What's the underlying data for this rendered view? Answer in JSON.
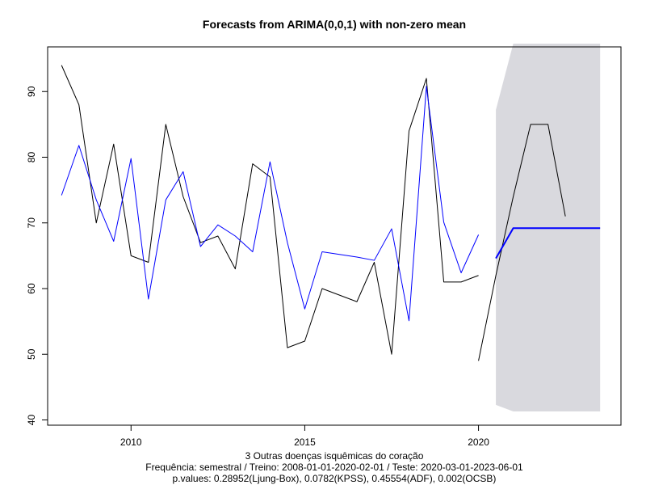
{
  "chart_data": {
    "type": "line",
    "title": "Forecasts from ARIMA(0,0,1) with non-zero mean",
    "caption_lines": [
      "3 Outras doenças isquêmicas do coração",
      "Frequência: semestral / Treino: 2008-01-01-2020-02-01 / Teste: 2020-03-01-2023-06-01",
      "p.values: 0.28952(Ljung-Box), 0.0782(KPSS), 0.45554(ADF), 0.002(OCSB)"
    ],
    "xlim": [
      2007.6,
      2024.1
    ],
    "ylim": [
      39.2,
      96.8
    ],
    "x_ticks": [
      2010,
      2015,
      2020
    ],
    "y_ticks": [
      40,
      50,
      60,
      70,
      80,
      90
    ],
    "series": [
      {
        "role": "observed",
        "color": "#000000",
        "x": [
          2008.0,
          2008.5,
          2009.0,
          2009.5,
          2010.0,
          2010.5,
          2011.0,
          2011.5,
          2012.0,
          2012.5,
          2013.0,
          2013.5,
          2014.0,
          2014.5,
          2015.0,
          2015.5,
          2016.0,
          2016.5,
          2017.0,
          2017.5,
          2018.0,
          2018.5,
          2019.0,
          2019.5,
          2020.0
        ],
        "values": [
          94,
          88,
          70,
          82,
          65,
          64,
          85,
          74,
          67,
          68,
          63,
          79,
          77,
          51,
          52,
          60,
          59,
          58,
          64,
          50,
          84,
          92,
          61,
          61,
          62
        ]
      },
      {
        "role": "fitted",
        "color": "#0000ff",
        "x": [
          2008.0,
          2008.5,
          2009.0,
          2009.5,
          2010.0,
          2010.5,
          2011.0,
          2011.5,
          2012.0,
          2012.5,
          2013.0,
          2013.5,
          2014.0,
          2014.5,
          2015.0,
          2015.5,
          2016.0,
          2016.5,
          2017.0,
          2017.5,
          2018.0,
          2018.5,
          2019.0,
          2019.5,
          2020.0
        ],
        "values": [
          74.2,
          81.8,
          73.5,
          67.2,
          79.8,
          58.4,
          73.5,
          77.8,
          66.4,
          69.7,
          68.0,
          65.6,
          79.3,
          67.0,
          56.9,
          65.6,
          65.2,
          64.8,
          64.3,
          69.1,
          55.1,
          90.8,
          70.1,
          62.4,
          68.2
        ]
      },
      {
        "role": "test",
        "color": "#000000",
        "x": [
          2020.0,
          2020.5,
          2021.0,
          2021.5,
          2022.0,
          2022.5
        ],
        "values": [
          49,
          62,
          74,
          85,
          85,
          71
        ]
      },
      {
        "role": "forecast",
        "color": "#0000ff",
        "x": [
          2020.5,
          2021.0,
          2021.5,
          2022.0,
          2022.5,
          2023.0,
          2023.5
        ],
        "values": [
          64.6,
          69.2,
          69.2,
          69.2,
          69.2,
          69.2,
          69.2
        ]
      }
    ],
    "interval_band": {
      "color": "#d9d9de",
      "x": [
        2020.5,
        2021.0,
        2021.5,
        2022.0,
        2022.5,
        2023.0,
        2023.5
      ],
      "lower": [
        42.3,
        41.3,
        41.3,
        41.3,
        41.3,
        41.3,
        41.3
      ],
      "upper": [
        87.2,
        97.3,
        97.3,
        97.3,
        97.3,
        97.3,
        97.3
      ]
    }
  }
}
